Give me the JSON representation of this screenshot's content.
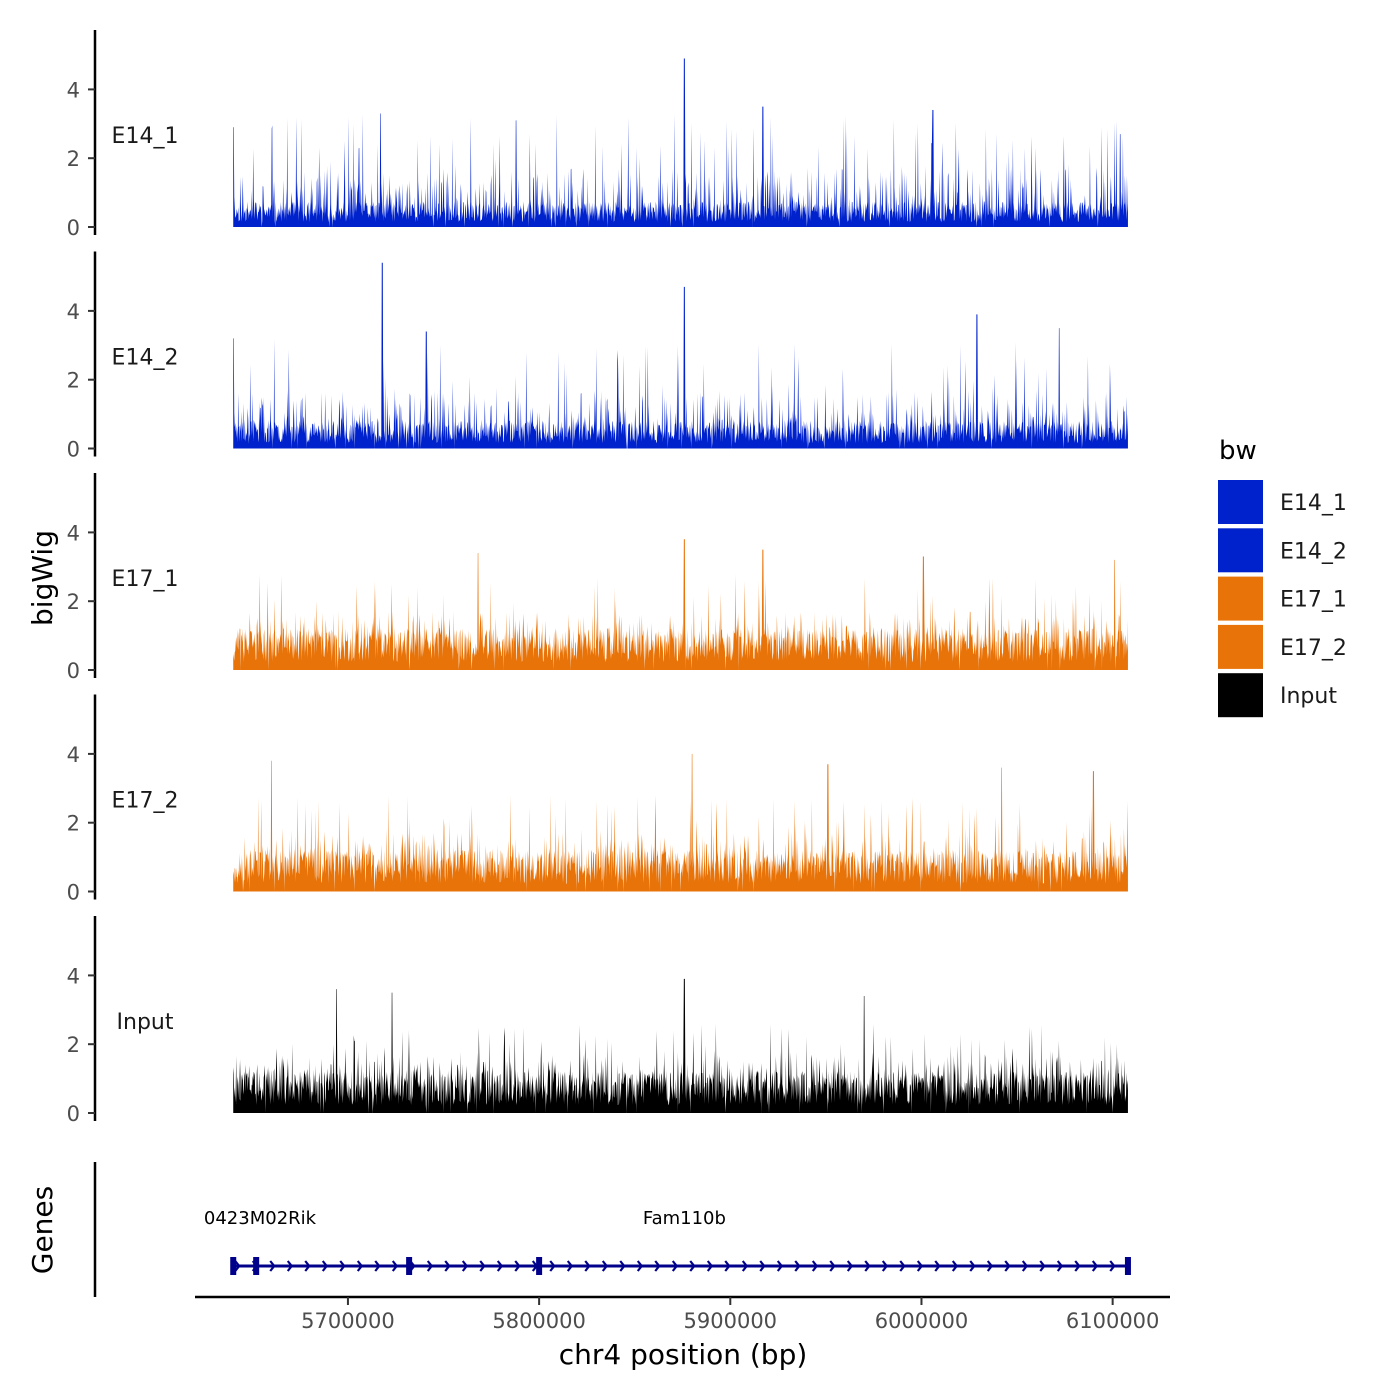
{
  "chart_data": {
    "type": "area",
    "y_axis_label": "bigWig",
    "genes_axis_label": "Genes",
    "x_axis_label": "chr4 position (bp)",
    "xlim": [
      5620000,
      6130000
    ],
    "data_range": [
      5640000,
      6108000
    ],
    "ylim": [
      0,
      5.8
    ],
    "y_ticks": [
      0,
      2,
      4
    ],
    "y_tick_labels": [
      "0",
      "2",
      "4"
    ],
    "x_ticks": [
      5700000,
      5800000,
      5900000,
      6000000,
      6100000
    ],
    "x_tick_labels": [
      "5700000",
      "5800000",
      "5900000",
      "6000000",
      "6100000"
    ],
    "legend": {
      "title": "bw",
      "position": "right",
      "entries": [
        {
          "label": "E14_1",
          "color": "#0022CC"
        },
        {
          "label": "E14_2",
          "color": "#0022CC"
        },
        {
          "label": "E17_1",
          "color": "#E87308"
        },
        {
          "label": "E17_2",
          "color": "#E87308"
        },
        {
          "label": "Input",
          "color": "#000000"
        }
      ]
    },
    "series": [
      {
        "name": "E14_1",
        "color": "#0022CC",
        "seed": 11,
        "base": 0.55,
        "spike_max": 3.3,
        "peaks": [
          {
            "x": 5640000,
            "y": 2.9
          },
          {
            "x": 5717000,
            "y": 3.3
          },
          {
            "x": 5788000,
            "y": 3.1
          },
          {
            "x": 5876000,
            "y": 4.9
          },
          {
            "x": 5917000,
            "y": 3.5
          },
          {
            "x": 6006000,
            "y": 3.4
          },
          {
            "x": 6104000,
            "y": 2.7
          }
        ]
      },
      {
        "name": "E14_2",
        "color": "#0022CC",
        "seed": 23,
        "base": 0.6,
        "spike_max": 3.2,
        "peaks": [
          {
            "x": 5640000,
            "y": 3.2
          },
          {
            "x": 5718000,
            "y": 5.4
          },
          {
            "x": 5741000,
            "y": 3.4
          },
          {
            "x": 5876000,
            "y": 4.7
          },
          {
            "x": 6029000,
            "y": 3.9
          },
          {
            "x": 6072000,
            "y": 3.5
          }
        ]
      },
      {
        "name": "E17_1",
        "color": "#E87308",
        "seed": 37,
        "base": 0.9,
        "spike_max": 2.8,
        "peaks": [
          {
            "x": 5768000,
            "y": 3.4
          },
          {
            "x": 5876000,
            "y": 3.8
          },
          {
            "x": 5917000,
            "y": 3.5
          },
          {
            "x": 6001000,
            "y": 3.3
          },
          {
            "x": 6101000,
            "y": 3.2
          }
        ]
      },
      {
        "name": "E17_2",
        "color": "#E87308",
        "seed": 49,
        "base": 0.9,
        "spike_max": 2.8,
        "peaks": [
          {
            "x": 5660000,
            "y": 3.8
          },
          {
            "x": 5880000,
            "y": 4.0
          },
          {
            "x": 5951000,
            "y": 3.7
          },
          {
            "x": 6042000,
            "y": 3.6
          },
          {
            "x": 6090000,
            "y": 3.5
          }
        ]
      },
      {
        "name": "Input",
        "color": "#000000",
        "seed": 61,
        "base": 0.9,
        "spike_max": 2.6,
        "peaks": [
          {
            "x": 5694000,
            "y": 3.6
          },
          {
            "x": 5723000,
            "y": 3.5
          },
          {
            "x": 5876000,
            "y": 3.9
          },
          {
            "x": 5970000,
            "y": 3.4
          }
        ]
      }
    ],
    "genes": {
      "color": "#00008B",
      "labels": [
        {
          "text": "0423M02Rik",
          "x": 5654000
        },
        {
          "text": "Fam110b",
          "x": 5876000
        }
      ],
      "span": [
        5640000,
        6108000
      ],
      "strand": "+",
      "exons": [
        5640000,
        5652000,
        5732000,
        5800000,
        6108000
      ]
    }
  }
}
